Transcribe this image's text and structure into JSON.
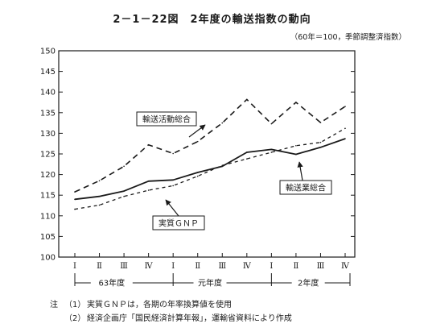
{
  "title": "2－1－22図　2年度の輸送指数の動向",
  "subtitle": "（60年＝100，季節調整済指数）",
  "notes": {
    "head": "注",
    "items": [
      {
        "num": "（1）",
        "text": "実質ＧＮＰは，各期の年率換算値を使用"
      },
      {
        "num": "（2）",
        "text": "経済企画庁「国民経済計算年報」，運輸省資料により作成"
      }
    ]
  },
  "chart_data": {
    "type": "line",
    "ylim": [
      100,
      150
    ],
    "yticks": [
      "100",
      "105",
      "110",
      "115",
      "120",
      "125",
      "130",
      "135",
      "140",
      "145",
      "150"
    ],
    "categories": [
      "Ⅰ",
      "Ⅱ",
      "Ⅲ",
      "Ⅳ",
      "Ⅰ",
      "Ⅱ",
      "Ⅲ",
      "Ⅳ",
      "Ⅰ",
      "Ⅱ",
      "Ⅲ",
      "Ⅳ"
    ],
    "year_groups": [
      {
        "label": "63年度",
        "span": [
          0,
          3
        ]
      },
      {
        "label": "元年度",
        "span": [
          4,
          7
        ]
      },
      {
        "label": "2年度",
        "span": [
          8,
          11
        ]
      }
    ],
    "series": [
      {
        "name": "輸送活動総合",
        "style": "dashed",
        "values": [
          115.8,
          118.5,
          122,
          127.2,
          125.1,
          128,
          132.5,
          138.2,
          132.3,
          137.5,
          132.6,
          136.5
        ]
      },
      {
        "name": "輸送業総合",
        "style": "solid",
        "values": [
          114,
          114.7,
          116,
          118.4,
          118.7,
          120.5,
          122,
          125.4,
          126.1,
          124.9,
          126.6,
          128.7
        ]
      },
      {
        "name": "実質ＧＮＰ",
        "style": "dashed-short",
        "values": [
          111.6,
          112.6,
          114.7,
          116.2,
          117.3,
          119.6,
          122.2,
          123.8,
          125.4,
          127,
          127.8,
          131.2
        ]
      }
    ],
    "grid": false,
    "legend": "inline labels with pointer arrows"
  }
}
